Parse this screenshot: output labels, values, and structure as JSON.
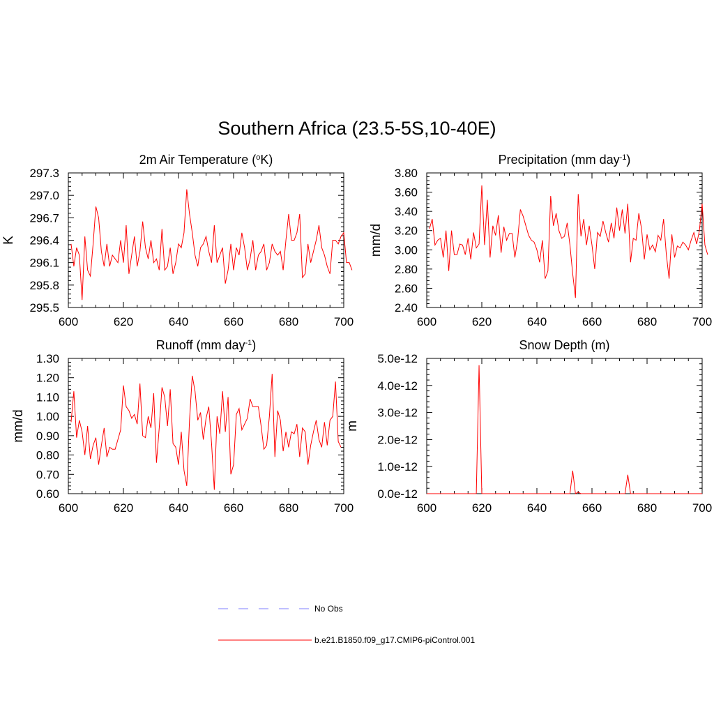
{
  "title": "Southern Africa (23.5-5S,10-40E)",
  "colors": {
    "model": "#ff0000",
    "obs": "#9999ff",
    "axis": "#000000"
  },
  "legend": [
    {
      "label": "No Obs",
      "style": "dashed",
      "color": "#9999ff"
    },
    {
      "label": "b.e21.B1850.f09_g17.CMIP6-piControl.001",
      "style": "solid",
      "color": "#ff0000"
    }
  ],
  "chart_data": [
    {
      "type": "line",
      "title_main": "2m Air Temperature (",
      "title_sup": "o",
      "title_end": "K)",
      "ylabel": "K",
      "xlim": [
        600,
        700
      ],
      "ylim": [
        295.5,
        297.3
      ],
      "xticks": [
        "600",
        "620",
        "640",
        "660",
        "680",
        "700"
      ],
      "yticks": [
        "295.5",
        "295.8",
        "296.1",
        "296.4",
        "296.7",
        "297.0",
        "297.3"
      ],
      "x_start": 601,
      "series": [
        {
          "name": "b.e21.B1850.f09_g17.CMIP6-piControl.001",
          "values": [
            296.35,
            296.05,
            296.3,
            296.2,
            295.6,
            296.45,
            296.0,
            295.92,
            296.35,
            296.85,
            296.7,
            296.25,
            296.05,
            296.35,
            296.05,
            296.2,
            296.15,
            296.1,
            296.4,
            296.1,
            296.6,
            295.95,
            296.2,
            296.45,
            296.05,
            296.25,
            296.65,
            296.3,
            296.15,
            296.4,
            296.1,
            296.15,
            296.0,
            296.55,
            296.0,
            296.05,
            296.3,
            295.95,
            296.1,
            296.35,
            296.3,
            296.5,
            297.08,
            296.75,
            296.5,
            296.2,
            296.05,
            296.3,
            296.35,
            296.45,
            296.25,
            296.1,
            296.6,
            296.1,
            296.2,
            296.3,
            295.82,
            296.0,
            296.35,
            296.0,
            296.3,
            296.2,
            296.5,
            296.3,
            296.0,
            296.15,
            296.4,
            296.0,
            296.2,
            296.25,
            296.35,
            296.0,
            296.1,
            296.35,
            296.25,
            296.2,
            296.25,
            296.0,
            296.4,
            296.75,
            296.4,
            296.4,
            296.5,
            296.75,
            295.9,
            295.95,
            296.35,
            296.1,
            296.25,
            296.4,
            296.6,
            296.3,
            296.2,
            296.05,
            295.95,
            296.4,
            296.4,
            296.35,
            296.45,
            296.5,
            296.1,
            296.1,
            296.0
          ]
        }
      ]
    },
    {
      "type": "line",
      "title_main": "Precipitation (mm day",
      "title_sup": "-1",
      "title_end": ")",
      "ylabel": "mm/d",
      "xlim": [
        600,
        700
      ],
      "ylim": [
        2.4,
        3.8
      ],
      "xticks": [
        "600",
        "620",
        "640",
        "660",
        "680",
        "700"
      ],
      "yticks": [
        "2.40",
        "2.60",
        "2.80",
        "3.00",
        "3.20",
        "3.40",
        "3.60",
        "3.80"
      ],
      "x_start": 601,
      "series": [
        {
          "name": "b.e21.B1850.f09_g17.CMIP6-piControl.001",
          "values": [
            3.22,
            3.32,
            3.05,
            3.1,
            3.12,
            2.92,
            3.2,
            2.78,
            3.2,
            2.95,
            2.95,
            3.06,
            3.05,
            2.95,
            3.12,
            2.9,
            3.18,
            3.02,
            3.06,
            3.67,
            3.05,
            3.52,
            2.92,
            3.25,
            3.15,
            3.36,
            2.97,
            3.24,
            3.1,
            3.17,
            3.17,
            2.92,
            3.1,
            3.42,
            3.35,
            3.25,
            3.15,
            3.1,
            3.08,
            3.0,
            2.87,
            3.1,
            2.7,
            2.78,
            3.56,
            3.25,
            3.38,
            3.2,
            3.12,
            3.14,
            3.28,
            3.05,
            2.75,
            2.5,
            3.58,
            3.14,
            3.32,
            3.05,
            3.25,
            3.05,
            2.8,
            3.18,
            3.14,
            3.3,
            3.18,
            3.08,
            3.28,
            3.12,
            3.44,
            3.2,
            3.42,
            3.17,
            3.48,
            2.87,
            3.12,
            3.1,
            3.38,
            3.22,
            2.9,
            3.16,
            3.0,
            3.05,
            2.98,
            3.15,
            3.1,
            3.32,
            2.95,
            2.7,
            3.16,
            2.92,
            3.04,
            3.02,
            3.08,
            3.05,
            3.0,
            3.1,
            3.18,
            3.06,
            3.2,
            3.48,
            3.05,
            2.95
          ]
        }
      ]
    },
    {
      "type": "line",
      "title_main": "Runoff (mm day",
      "title_sup": "-1",
      "title_end": ")",
      "ylabel": "mm/d",
      "xlim": [
        600,
        700
      ],
      "ylim": [
        0.6,
        1.3
      ],
      "xticks": [
        "600",
        "620",
        "640",
        "660",
        "680",
        "700"
      ],
      "yticks": [
        "0.60",
        "0.70",
        "0.80",
        "0.90",
        "1.00",
        "1.10",
        "1.20",
        "1.30"
      ],
      "x_start": 601,
      "series": [
        {
          "name": "b.e21.B1850.f09_g17.CMIP6-piControl.001",
          "values": [
            0.97,
            1.13,
            0.89,
            0.98,
            0.92,
            0.8,
            0.95,
            0.78,
            0.85,
            0.89,
            0.75,
            0.85,
            0.94,
            0.79,
            0.84,
            0.83,
            0.83,
            0.88,
            0.93,
            1.16,
            1.05,
            1.03,
            0.99,
            1.01,
            0.96,
            1.17,
            0.9,
            0.89,
            1.0,
            0.94,
            1.12,
            0.76,
            0.94,
            1.15,
            1.1,
            0.95,
            1.14,
            0.86,
            0.84,
            0.75,
            0.92,
            0.72,
            0.64,
            0.98,
            1.21,
            1.13,
            0.98,
            1.02,
            0.88,
            0.99,
            1.05,
            0.86,
            0.62,
            1.0,
            0.91,
            1.13,
            0.92,
            1.1,
            0.7,
            0.75,
            1.01,
            1.04,
            0.93,
            0.96,
            0.99,
            1.09,
            1.05,
            1.05,
            1.05,
            0.95,
            0.83,
            0.85,
            1.0,
            1.22,
            0.79,
            1.03,
            0.98,
            0.82,
            0.92,
            0.84,
            0.92,
            0.91,
            0.96,
            0.79,
            0.94,
            0.92,
            0.75,
            0.85,
            0.92,
            0.98,
            0.88,
            0.84,
            0.97,
            0.85,
            0.98,
            1.0,
            1.18,
            0.87,
            0.84
          ]
        }
      ]
    },
    {
      "type": "line",
      "title_main": "Snow Depth (m)",
      "title_sup": "",
      "title_end": "",
      "ylabel": "m",
      "xlim": [
        600,
        700
      ],
      "ylim": [
        0,
        5e-12
      ],
      "xticks": [
        "600",
        "620",
        "640",
        "660",
        "680",
        "700"
      ],
      "yticks": [
        "0.0e-12",
        "1.0e-12",
        "2.0e-12",
        "3.0e-12",
        "4.0e-12",
        "5.0e-12"
      ],
      "x_start": 600,
      "series": [
        {
          "name": "b.e21.B1850.f09_g17.CMIP6-piControl.001",
          "values": [
            0,
            0,
            0,
            0,
            0,
            0,
            0,
            0,
            0,
            0,
            0,
            0,
            0,
            0,
            0,
            0,
            0,
            0,
            0,
            4.75e-12,
            0,
            0,
            0,
            0,
            0,
            0,
            0,
            0,
            0,
            0,
            0,
            0,
            0,
            0,
            0,
            0,
            0,
            0,
            0,
            0,
            0,
            0,
            0,
            0,
            0,
            0,
            0,
            0,
            0,
            0,
            0,
            0,
            0,
            8.5e-13,
            0,
            6e-14,
            0,
            0,
            0,
            0,
            0,
            0,
            0,
            0,
            0,
            0,
            0,
            0,
            0,
            0,
            0,
            0,
            0,
            7e-13,
            0,
            0,
            0,
            0,
            0,
            0,
            0,
            0,
            0,
            0,
            0,
            0,
            0,
            0,
            0,
            0,
            0,
            0,
            0,
            0,
            0,
            0,
            0,
            0,
            0,
            0,
            0
          ]
        }
      ]
    }
  ]
}
